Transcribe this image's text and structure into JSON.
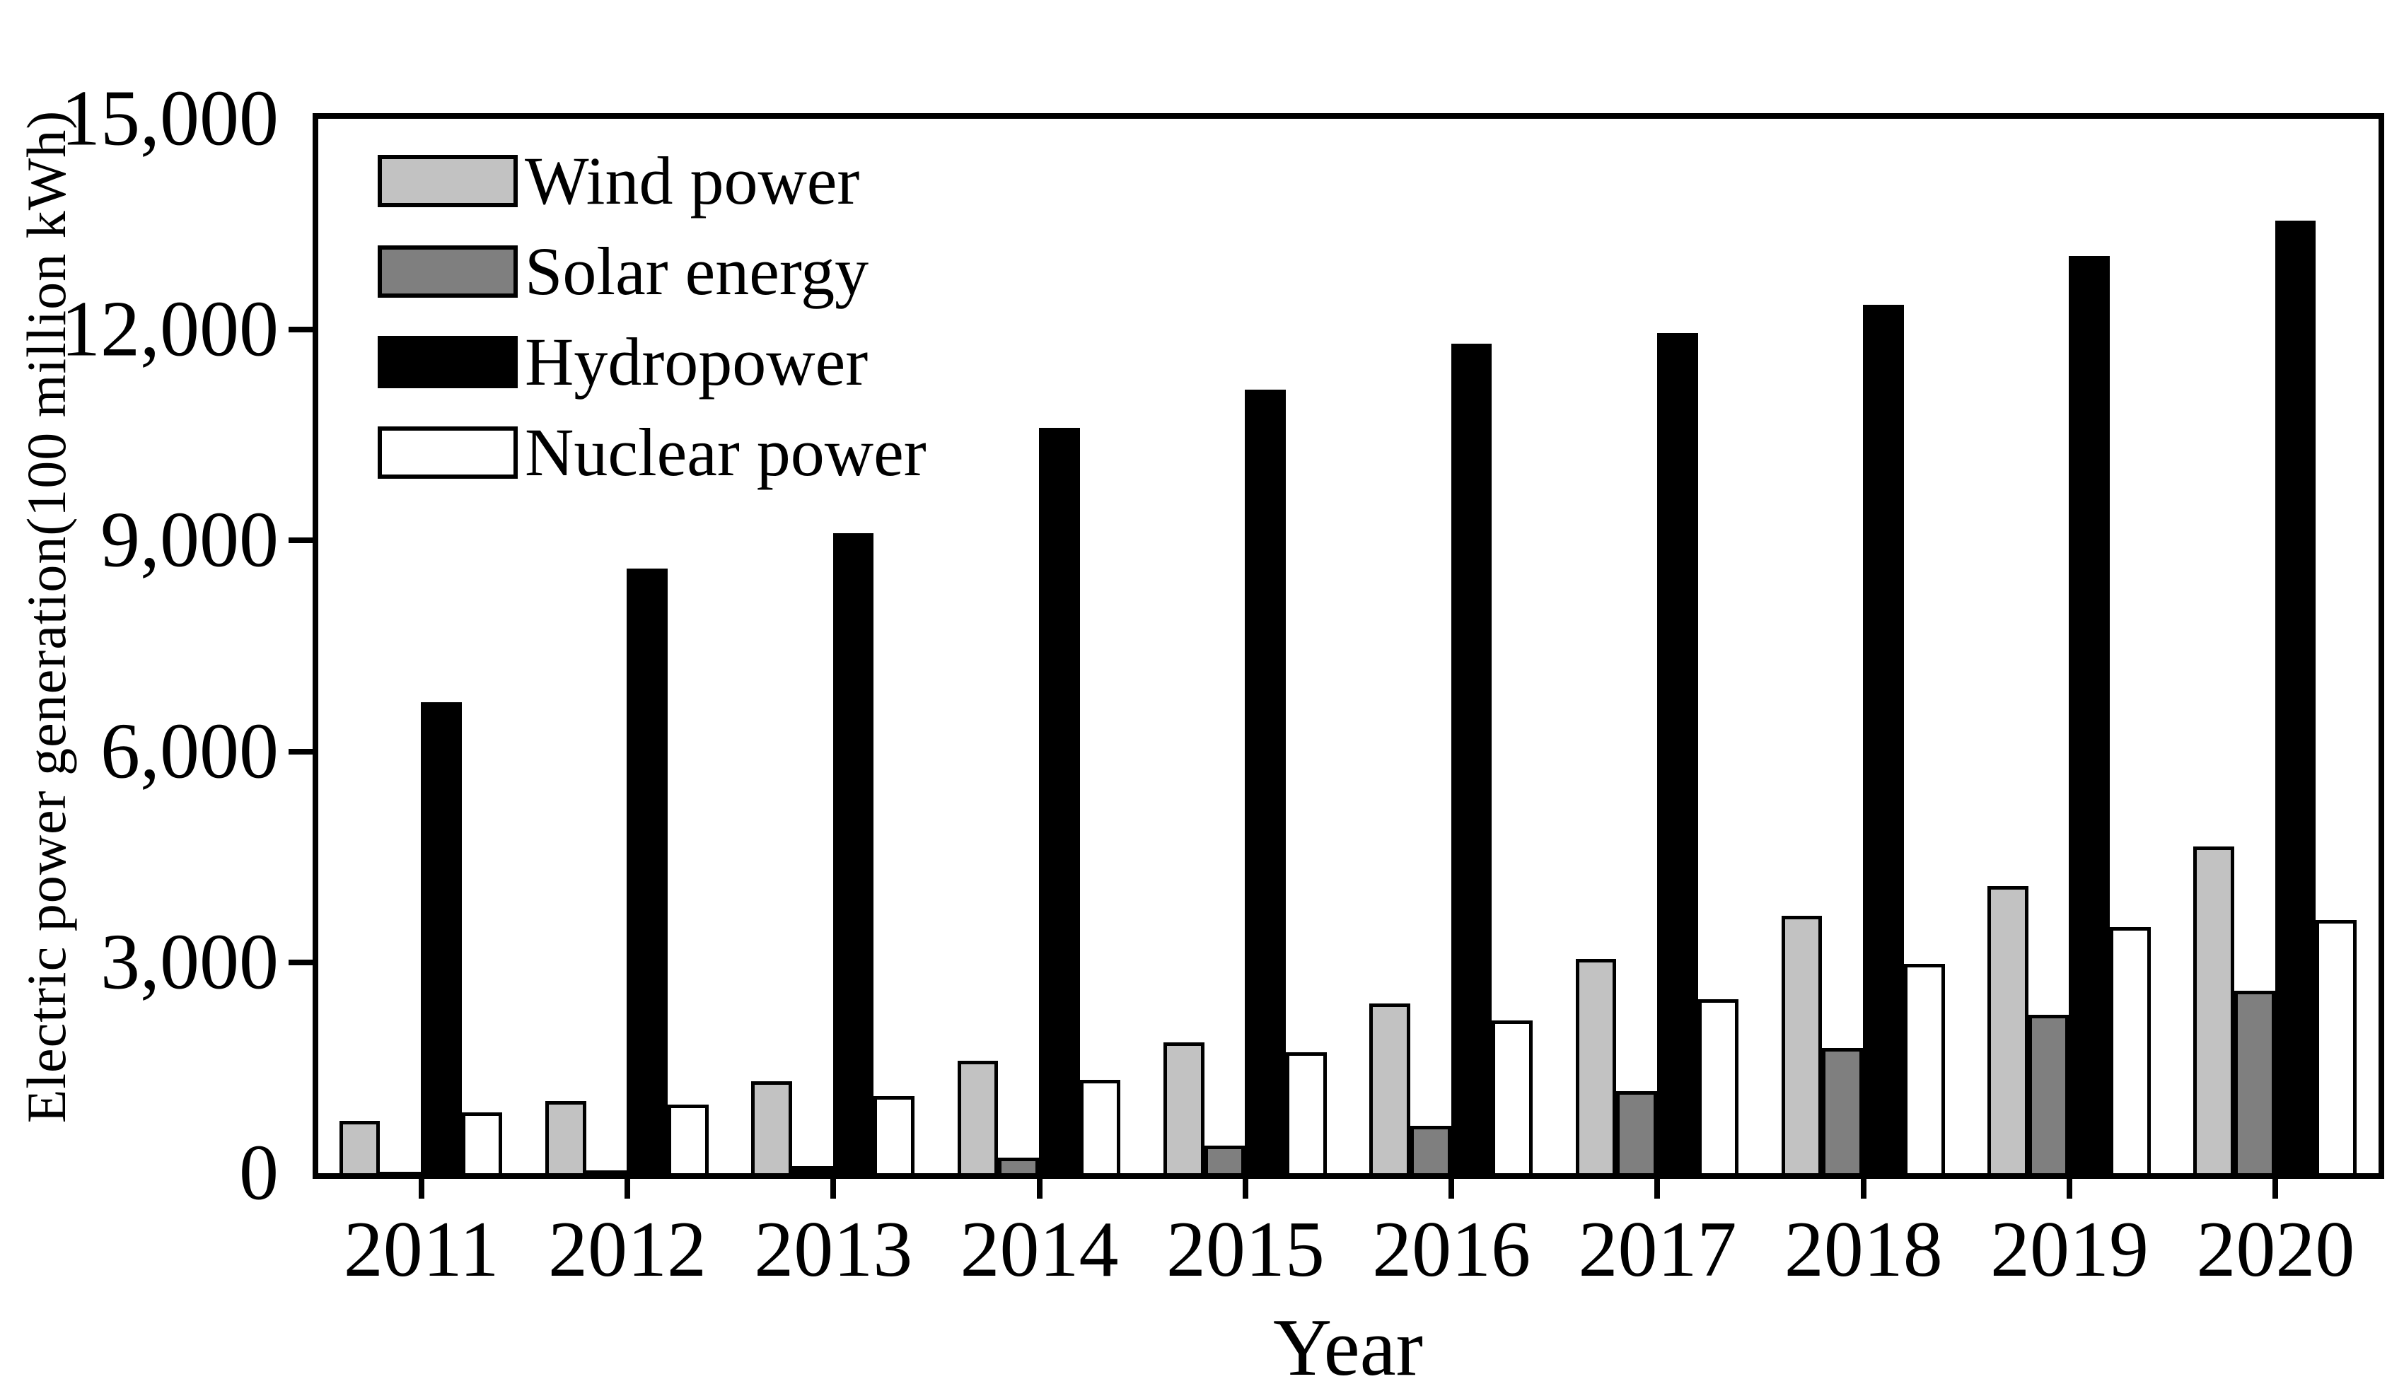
{
  "chart_data": {
    "type": "bar",
    "title": "",
    "xlabel": "Year",
    "ylabel": "Electric power generation(100 million kWh)",
    "ylim": [
      0,
      15000
    ],
    "ytick_interval": 3000,
    "ytick_labels": [
      "0",
      "3,000",
      "6,000",
      "9,000",
      "12,000",
      "15,000"
    ],
    "grid": false,
    "legend_position": "top-left-inside",
    "categories": [
      "2011",
      "2012",
      "2013",
      "2014",
      "2015",
      "2016",
      "2017",
      "2018",
      "2019",
      "2020"
    ],
    "series": [
      {
        "name": "Wind power",
        "color": "#c2c2c2",
        "values": [
          740,
          1030,
          1310,
          1600,
          1860,
          2410,
          3050,
          3660,
          4080,
          4650
        ]
      },
      {
        "name": "Solar energy",
        "color": "#7f7f7f",
        "values": [
          10,
          40,
          100,
          220,
          390,
          670,
          1170,
          1780,
          2250,
          2600
        ]
      },
      {
        "name": "Hydropower",
        "color": "#000000",
        "values": [
          6700,
          8600,
          9100,
          10600,
          11150,
          11800,
          11950,
          12350,
          13050,
          13550
        ]
      },
      {
        "name": "Nuclear power",
        "color": "#ffffff",
        "values": [
          870,
          980,
          1100,
          1330,
          1720,
          2170,
          2470,
          2980,
          3500,
          3600
        ]
      }
    ],
    "axis_color": "#000000",
    "background_color": "#ffffff"
  }
}
